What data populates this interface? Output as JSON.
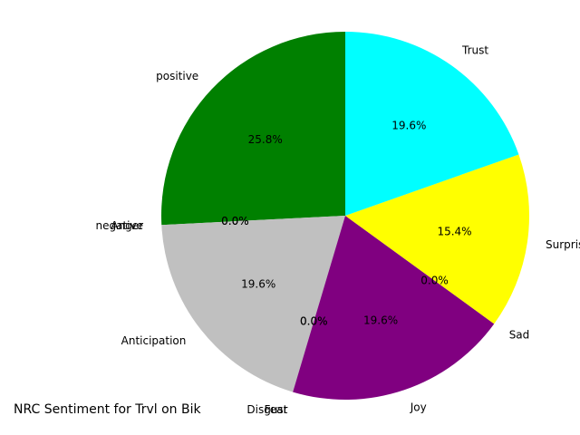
{
  "chart_data": {
    "type": "pie",
    "title": "NRC Sentiment for Trvl on Bik",
    "start_angle_deg": 90,
    "direction": "counterclockwise",
    "slices": [
      {
        "label": "positive",
        "value": 25.8,
        "pct_label": "25.8%",
        "color": "#008000"
      },
      {
        "label": "negative",
        "value": 0.0,
        "pct_label": "0.0%",
        "color": "#ff0000"
      },
      {
        "label": "Anger",
        "value": 0.0,
        "pct_label": "0.0%",
        "color": "#0000ff"
      },
      {
        "label": "Anticipation",
        "value": 19.6,
        "pct_label": "19.6%",
        "color": "#c0c0c0"
      },
      {
        "label": "Disgust",
        "value": 0.0,
        "pct_label": "0.0%",
        "color": "#a52a2a"
      },
      {
        "label": "Fear",
        "value": 0.0,
        "pct_label": "0.0%",
        "color": "#000000"
      },
      {
        "label": "Joy",
        "value": 19.6,
        "pct_label": "19.6%",
        "color": "#800080"
      },
      {
        "label": "Sad",
        "value": 0.0,
        "pct_label": "0.0%",
        "color": "#ff00ff"
      },
      {
        "label": "Surprise",
        "value": 15.4,
        "pct_label": "15.4%",
        "color": "#ffff00"
      },
      {
        "label": "Trust",
        "value": 19.6,
        "pct_label": "19.6%",
        "color": "#00ffff"
      }
    ]
  }
}
